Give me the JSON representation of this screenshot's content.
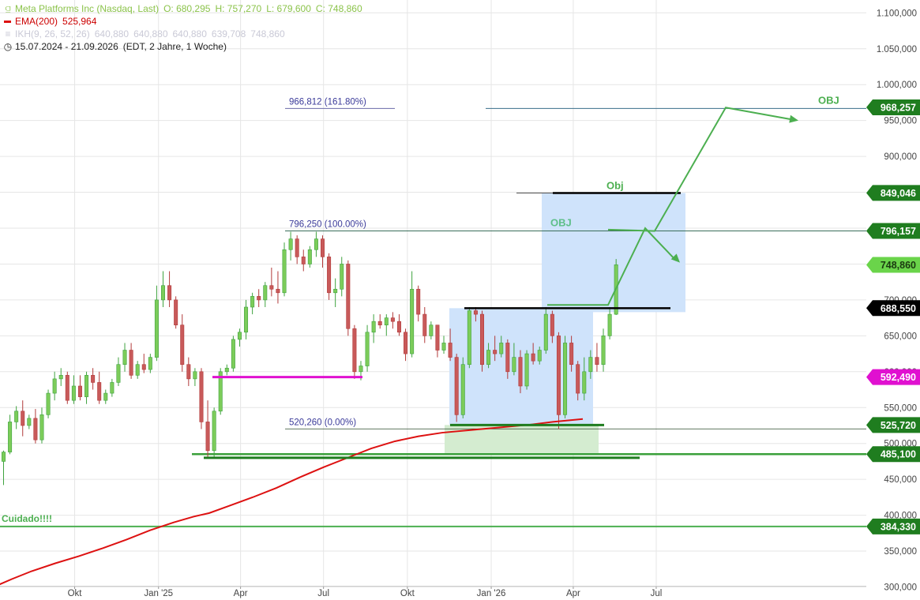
{
  "legend": {
    "instrument": "Meta Platforms Inc (Nasdaq, Last)",
    "open": "O: 680,295",
    "high": "H: 757,270",
    "low": "L: 679,600",
    "close": "C: 748,860",
    "ema_label": "EMA(200)",
    "ema_value": "525,964",
    "ikh_label": "IKH(9, 26, 52, 26)",
    "ikh_values": [
      "640,880",
      "640,880",
      "640,880",
      "639,708",
      "748,860"
    ],
    "period_range": "15.07.2024 - 21.09.2026",
    "period_info": "(EDT, 2 Jahre, 1 Woche)"
  },
  "chart_data": {
    "type": "candlestick",
    "title": "Meta Platforms Inc (Nasdaq, Last)",
    "interval": "1 Woche",
    "ylim": [
      295000,
      1110000
    ],
    "x_range": [
      "2024-07-15",
      "2026-09-21"
    ],
    "y_ticks": [
      {
        "value": 300000,
        "label": "300,000"
      },
      {
        "value": 350000,
        "label": "350,000"
      },
      {
        "value": 400000,
        "label": "400,000"
      },
      {
        "value": 450000,
        "label": "450,000"
      },
      {
        "value": 500000,
        "label": "500,000"
      },
      {
        "value": 550000,
        "label": "550,000"
      },
      {
        "value": 600000,
        "label": "600,000"
      },
      {
        "value": 650000,
        "label": "650,000"
      },
      {
        "value": 700000,
        "label": "700,000"
      },
      {
        "value": 750000,
        "label": "750,000"
      },
      {
        "value": 800000,
        "label": "800,000"
      },
      {
        "value": 850000,
        "label": "850,000"
      },
      {
        "value": 900000,
        "label": "900,000"
      },
      {
        "value": 950000,
        "label": "950,000"
      },
      {
        "value": 1000000,
        "label": "1.000,000"
      },
      {
        "value": 1050000,
        "label": "1.050,000"
      },
      {
        "value": 1100000,
        "label": "1.100,000"
      }
    ],
    "x_ticks": [
      {
        "date": "2024-10-01",
        "label": "Okt"
      },
      {
        "date": "2025-01-01",
        "label": "Jan '25"
      },
      {
        "date": "2025-04-01",
        "label": "Apr"
      },
      {
        "date": "2025-07-01",
        "label": "Jul"
      },
      {
        "date": "2025-10-01",
        "label": "Okt"
      },
      {
        "date": "2026-01-01",
        "label": "Jan '26"
      },
      {
        "date": "2026-04-01",
        "label": "Apr"
      },
      {
        "date": "2026-07-01",
        "label": "Jul"
      }
    ],
    "candles": [
      [
        475,
        490,
        442,
        488
      ],
      [
        488,
        540,
        485,
        530
      ],
      [
        530,
        552,
        520,
        545
      ],
      [
        545,
        560,
        510,
        525
      ],
      [
        525,
        540,
        520,
        535
      ],
      [
        535,
        548,
        500,
        505
      ],
      [
        505,
        550,
        500,
        540
      ],
      [
        540,
        575,
        535,
        570
      ],
      [
        570,
        600,
        560,
        590
      ],
      [
        590,
        605,
        580,
        595
      ],
      [
        595,
        600,
        555,
        560
      ],
      [
        560,
        595,
        555,
        580
      ],
      [
        580,
        595,
        560,
        565
      ],
      [
        565,
        600,
        555,
        595
      ],
      [
        595,
        605,
        575,
        585
      ],
      [
        585,
        600,
        555,
        560
      ],
      [
        560,
        575,
        555,
        570
      ],
      [
        570,
        590,
        565,
        585
      ],
      [
        585,
        620,
        580,
        610
      ],
      [
        610,
        640,
        600,
        630
      ],
      [
        630,
        640,
        590,
        595
      ],
      [
        595,
        615,
        590,
        610
      ],
      [
        610,
        625,
        598,
        603
      ],
      [
        603,
        625,
        598,
        620
      ],
      [
        620,
        720,
        615,
        700
      ],
      [
        700,
        740,
        690,
        720
      ],
      [
        720,
        740,
        690,
        700
      ],
      [
        700,
        705,
        660,
        665
      ],
      [
        665,
        680,
        600,
        610
      ],
      [
        610,
        620,
        580,
        590
      ],
      [
        590,
        605,
        580,
        600
      ],
      [
        600,
        605,
        520,
        530
      ],
      [
        530,
        560,
        480,
        490
      ],
      [
        490,
        550,
        480,
        545
      ],
      [
        545,
        605,
        540,
        600
      ],
      [
        600,
        610,
        595,
        605
      ],
      [
        605,
        650,
        600,
        645
      ],
      [
        645,
        660,
        635,
        655
      ],
      [
        655,
        700,
        645,
        690
      ],
      [
        690,
        710,
        680,
        705
      ],
      [
        705,
        715,
        690,
        700
      ],
      [
        700,
        725,
        690,
        720
      ],
      [
        720,
        745,
        705,
        715
      ],
      [
        715,
        740,
        695,
        710
      ],
      [
        710,
        780,
        705,
        770
      ],
      [
        770,
        795,
        755,
        785
      ],
      [
        785,
        790,
        750,
        760
      ],
      [
        760,
        770,
        740,
        750
      ],
      [
        750,
        775,
        745,
        770
      ],
      [
        770,
        795,
        760,
        785
      ],
      [
        785,
        790,
        745,
        760
      ],
      [
        760,
        765,
        700,
        710
      ],
      [
        710,
        730,
        690,
        715
      ],
      [
        715,
        760,
        705,
        750
      ],
      [
        750,
        755,
        650,
        660
      ],
      [
        660,
        665,
        590,
        600
      ],
      [
        600,
        615,
        588,
        608
      ],
      [
        608,
        665,
        600,
        655
      ],
      [
        655,
        680,
        640,
        670
      ],
      [
        670,
        680,
        660,
        665
      ],
      [
        665,
        680,
        650,
        675
      ],
      [
        675,
        683,
        660,
        670
      ],
      [
        670,
        680,
        650,
        655
      ],
      [
        655,
        660,
        615,
        625
      ],
      [
        625,
        740,
        620,
        715
      ],
      [
        715,
        720,
        670,
        680
      ],
      [
        680,
        690,
        640,
        650
      ],
      [
        650,
        670,
        645,
        665
      ],
      [
        665,
        665,
        620,
        630
      ],
      [
        630,
        650,
        625,
        640
      ],
      [
        640,
        660,
        615,
        620
      ],
      [
        620,
        625,
        530,
        540
      ],
      [
        540,
        620,
        535,
        610
      ],
      [
        610,
        690,
        605,
        685
      ],
      [
        685,
        690,
        670,
        680
      ],
      [
        680,
        685,
        600,
        610
      ],
      [
        610,
        640,
        605,
        630
      ],
      [
        630,
        650,
        615,
        625
      ],
      [
        625,
        650,
        620,
        640
      ],
      [
        640,
        645,
        590,
        600
      ],
      [
        600,
        640,
        595,
        620
      ],
      [
        620,
        630,
        570,
        580
      ],
      [
        580,
        630,
        575,
        625
      ],
      [
        625,
        640,
        610,
        615
      ],
      [
        615,
        635,
        610,
        630
      ],
      [
        630,
        690,
        625,
        680
      ],
      [
        680,
        685,
        640,
        650
      ],
      [
        650,
        655,
        520,
        540
      ],
      [
        540,
        650,
        535,
        640
      ],
      [
        640,
        650,
        600,
        610
      ],
      [
        610,
        615,
        560,
        570
      ],
      [
        570,
        620,
        560,
        600
      ],
      [
        600,
        630,
        590,
        620
      ],
      [
        620,
        640,
        600,
        610
      ],
      [
        610,
        660,
        600,
        650
      ],
      [
        650,
        690,
        645,
        680
      ],
      [
        680,
        757,
        679,
        749
      ]
    ],
    "ema200": [
      [
        -8,
        300
      ],
      [
        15,
        311
      ],
      [
        40,
        322
      ],
      [
        70,
        333
      ],
      [
        100,
        343
      ],
      [
        130,
        354
      ],
      [
        160,
        366
      ],
      [
        190,
        379
      ],
      [
        220,
        390
      ],
      [
        245,
        398
      ],
      [
        265,
        403
      ],
      [
        290,
        413
      ],
      [
        320,
        425
      ],
      [
        350,
        438
      ],
      [
        380,
        453
      ],
      [
        410,
        467
      ],
      [
        440,
        480
      ],
      [
        470,
        493
      ],
      [
        500,
        503
      ],
      [
        530,
        510
      ],
      [
        560,
        515
      ],
      [
        600,
        519
      ],
      [
        640,
        523
      ],
      [
        670,
        526
      ],
      [
        700,
        530
      ],
      [
        738,
        534
      ]
    ],
    "horizontal_levels": [
      {
        "value": 968257,
        "label": "968,257",
        "color": "#1f7d1f"
      },
      {
        "value": 849046,
        "label": "849,046",
        "color": "#1f7d1f"
      },
      {
        "value": 796157,
        "label": "796,157",
        "color": "#1f7d1f"
      },
      {
        "value": 748860,
        "label": "748,860",
        "color": "#6ad44a"
      },
      {
        "value": 688550,
        "label": "688,550",
        "color": "#000000"
      },
      {
        "value": 592490,
        "label": "592,490",
        "color": "#e010d0"
      },
      {
        "value": 525720,
        "label": "525,720",
        "color": "#1f7d1f"
      },
      {
        "value": 485100,
        "label": "485,100",
        "color": "#1f7d1f"
      },
      {
        "value": 384330,
        "label": "384,330",
        "color": "#1f7d1f"
      }
    ],
    "fibonacci": [
      {
        "value": 966812,
        "label": "966,812 (161.80%)"
      },
      {
        "value": 796250,
        "label": "796,250 (100.00%)"
      },
      {
        "value": 520260,
        "label": "520,260 (0.00%)"
      }
    ],
    "annotations": {
      "obj_top": "OBJ",
      "obj_small": "Obj",
      "obj_mid": "OBJ",
      "warning": "Cuidado!!!!"
    }
  }
}
